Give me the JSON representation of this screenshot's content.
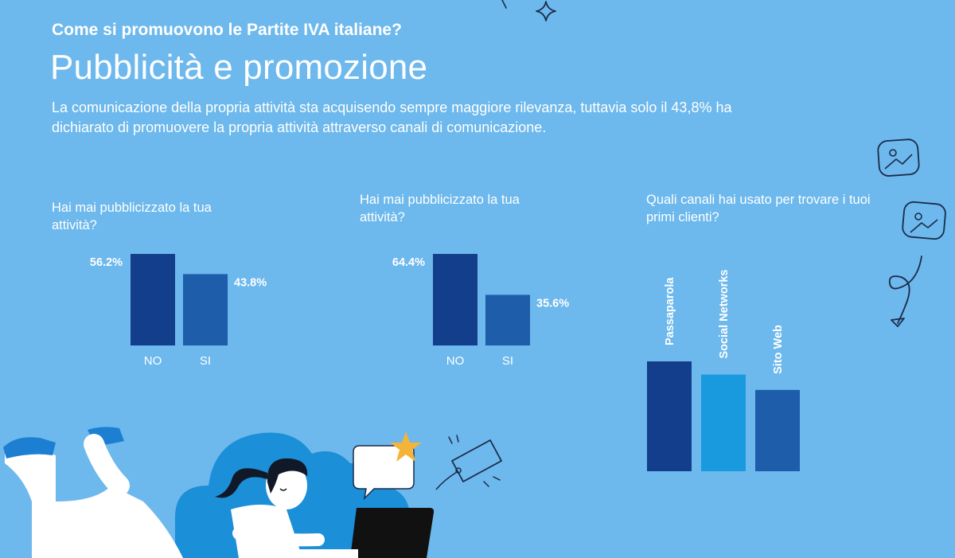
{
  "header": {
    "kicker": "Come si promuovono le Partite IVA italiane?",
    "title": "Pubblicità e promozione",
    "intro": "La comunicazione della propria attività sta acquisendo sempre maggiore rilevanza, tuttavia solo il 43,8% ha dichiarato di promuovere la propria attività attraverso canali di comunicazione."
  },
  "chart_data": [
    {
      "type": "bar",
      "title": "Hai mai pubblicizzato la tua attività?",
      "categories": [
        "NO",
        "SI"
      ],
      "values": [
        56.2,
        43.8
      ],
      "labels": [
        "56.2%",
        "43.8%"
      ],
      "colors": [
        "#123e8c",
        "#1d5daa"
      ],
      "ylim": [
        0,
        56.2
      ]
    },
    {
      "type": "bar",
      "title": "Hai mai pubblicizzato la tua attività?",
      "categories": [
        "NO",
        "SI"
      ],
      "values": [
        64.4,
        35.6
      ],
      "labels": [
        "64.4%",
        "35.6%"
      ],
      "colors": [
        "#123e8c",
        "#1d5daa"
      ],
      "ylim": [
        0,
        64.4
      ]
    },
    {
      "type": "bar",
      "title": "Quali canali hai usato per trovare i tuoi primi clienti?",
      "categories": [
        "Passaparola",
        "Social Networks",
        "Sito Web"
      ],
      "values": [
        100,
        88,
        74
      ],
      "colors": [
        "#123e8c",
        "#1a9ade",
        "#1d5daa"
      ],
      "ylim": [
        0,
        100
      ]
    }
  ],
  "colors": {
    "background": "#6db8ec",
    "dark_blue": "#123e8c",
    "mid_blue": "#1d5daa",
    "light_blue": "#1a9ade",
    "star": "#f4b43a"
  },
  "icons": [
    "image-icon",
    "image-icon",
    "curly-arrow-icon",
    "sparkle-icon",
    "price-tag-icon",
    "star-icon",
    "speech-bubble-icon",
    "laptop-icon"
  ]
}
